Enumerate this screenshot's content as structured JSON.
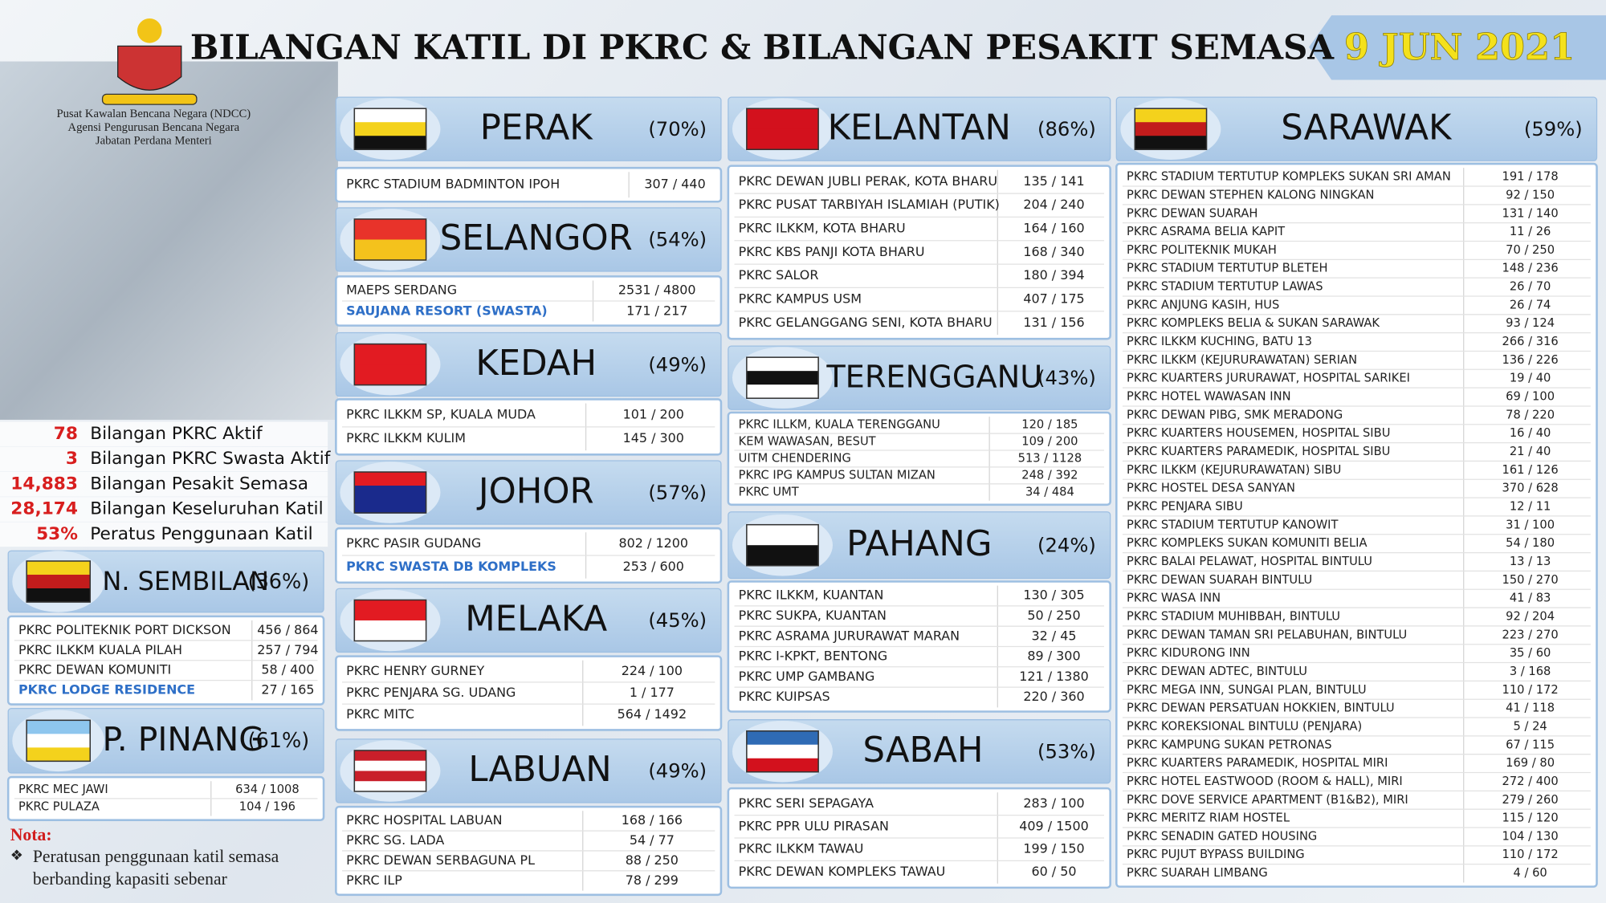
{
  "header": {
    "title": "BILANGAN KATIL DI PKRC & BILANGAN PESAKIT SEMASA",
    "date": "9 JUN 2021"
  },
  "agency": [
    "Pusat Kawalan Bencana Negara (NDCC)",
    "Agensi Pengurusan Bencana Negara",
    "Jabatan Perdana Menteri"
  ],
  "summary": [
    {
      "value": "78",
      "label": "Bilangan PKRC Aktif"
    },
    {
      "value": "3",
      "label": "Bilangan PKRC Swasta Aktif"
    },
    {
      "value": "14,883",
      "label": "Bilangan Pesakit Semasa"
    },
    {
      "value": "28,174",
      "label": "Bilangan Keseluruhan Katil"
    },
    {
      "value": "53%",
      "label": "Peratus Penggunaan Katil"
    }
  ],
  "states": [
    {
      "name": "PERAK",
      "pct": "(70%)",
      "rows": [
        {
          "name": "PKRC STADIUM BADMINTON IPOH",
          "value": "307 / 440"
        }
      ]
    },
    {
      "name": "SELANGOR",
      "pct": "(54%)",
      "rows": [
        {
          "name": "MAEPS SERDANG",
          "value": "2531 / 4800"
        },
        {
          "name": "SAUJANA RESORT (SWASTA)",
          "value": "171 / 217",
          "color": "#2e6fc7"
        }
      ]
    },
    {
      "name": "KEDAH",
      "pct": "(49%)",
      "rows": [
        {
          "name": "PKRC ILKKM SP, KUALA MUDA",
          "value": "101 / 200"
        },
        {
          "name": "PKRC ILKKM KULIM",
          "value": "145 / 300"
        }
      ]
    },
    {
      "name": "JOHOR",
      "pct": "(57%)",
      "rows": [
        {
          "name": "PKRC PASIR GUDANG",
          "value": "802 / 1200"
        },
        {
          "name": "PKRC SWASTA DB KOMPLEKS",
          "value": "253 / 600",
          "color": "#2e6fc7"
        }
      ]
    },
    {
      "name": "MELAKA",
      "pct": "(45%)",
      "rows": [
        {
          "name": "PKRC HENRY GURNEY",
          "value": "224 / 100"
        },
        {
          "name": "PKRC PENJARA SG. UDANG",
          "value": "1 / 177"
        },
        {
          "name": "PKRC MITC",
          "value": "564 / 1492"
        }
      ]
    },
    {
      "name": "LABUAN",
      "pct": "(49%)",
      "rows": [
        {
          "name": "PKRC HOSPITAL LABUAN",
          "value": "168 / 166"
        },
        {
          "name": "PKRC SG. LADA",
          "value": "54 / 77"
        },
        {
          "name": "PKRC DEWAN SERBAGUNA PL",
          "value": "88 / 250"
        },
        {
          "name": "PKRC ILP",
          "value": "78 / 299"
        }
      ]
    },
    {
      "name": "KELANTAN",
      "pct": "(86%)",
      "rows": [
        {
          "name": "PKRC DEWAN JUBLI PERAK, KOTA BHARU",
          "value": "135 / 141"
        },
        {
          "name": "PKRC PUSAT TARBIYAH ISLAMIAH (PUTIK)",
          "value": "204 / 240"
        },
        {
          "name": "PKRC ILKKM, KOTA BHARU",
          "value": "164 / 160"
        },
        {
          "name": "PKRC KBS PANJI KOTA BHARU",
          "value": "168 / 340"
        },
        {
          "name": "PKRC SALOR",
          "value": "180 / 394"
        },
        {
          "name": "PKRC KAMPUS USM",
          "value": "407 / 175"
        },
        {
          "name": "PKRC GELANGGANG SENI, KOTA BHARU",
          "value": "131 / 156"
        }
      ]
    },
    {
      "name": "TERENGGANU",
      "pct": "(43%)",
      "rows": [
        {
          "name": "PKRC ILLKM, KUALA TERENGGANU",
          "value": "120 / 185"
        },
        {
          "name": "KEM WAWASAN, BESUT",
          "value": "109 / 200"
        },
        {
          "name": "UITM CHENDERING",
          "value": "513 / 1128"
        },
        {
          "name": "PKRC IPG KAMPUS SULTAN MIZAN",
          "value": "248 / 392"
        },
        {
          "name": "PKRC UMT",
          "value": "34 / 484"
        }
      ]
    },
    {
      "name": "PAHANG",
      "pct": "(24%)",
      "rows": [
        {
          "name": "PKRC ILKKM, KUANTAN",
          "value": "130 / 305"
        },
        {
          "name": "PKRC SUKPA, KUANTAN",
          "value": "50 / 250"
        },
        {
          "name": "PKRC ASRAMA JURURAWAT MARAN",
          "value": "32 / 45"
        },
        {
          "name": "PKRC I-KPKT, BENTONG",
          "value": "89 / 300"
        },
        {
          "name": "PKRC UMP GAMBANG",
          "value": "121 / 1380"
        },
        {
          "name": "PKRC KUIPSAS",
          "value": "220 / 360"
        }
      ]
    },
    {
      "name": "SABAH",
      "pct": "(53%)",
      "rows": [
        {
          "name": "PKRC SERI SEPAGAYA",
          "value": "283 / 100"
        },
        {
          "name": "PKRC PPR ULU PIRASAN",
          "value": "409 / 1500"
        },
        {
          "name": "PKRC ILKKM TAWAU",
          "value": "199 / 150"
        },
        {
          "name": "PKRC DEWAN KOMPLEKS TAWAU",
          "value": "60 / 50"
        }
      ]
    },
    {
      "name": "SARAWAK",
      "pct": "(59%)",
      "rows": [
        {
          "name": "PKRC STADIUM TERTUTUP KOMPLEKS SUKAN SRI AMAN",
          "value": "191 / 178"
        },
        {
          "name": "PKRC DEWAN STEPHEN KALONG NINGKAN",
          "value": "92 / 150"
        },
        {
          "name": "PKRC DEWAN SUARAH",
          "value": "131 / 140"
        },
        {
          "name": "PKRC ASRAMA BELIA KAPIT",
          "value": "11 / 26"
        },
        {
          "name": "PKRC POLITEKNIK MUKAH",
          "value": "70 / 250"
        },
        {
          "name": "PKRC STADIUM TERTUTUP BLETEH",
          "value": "148 / 236"
        },
        {
          "name": "PKRC STADIUM TERTUTUP LAWAS",
          "value": "26 / 70"
        },
        {
          "name": "PKRC ANJUNG KASIH, HUS",
          "value": "26 / 74"
        },
        {
          "name": "PKRC KOMPLEKS BELIA & SUKAN SARAWAK",
          "value": "93 / 124"
        },
        {
          "name": "PKRC ILKKM KUCHING, BATU 13",
          "value": "266 / 316"
        },
        {
          "name": "PKRC ILKKM (KEJURURAWATAN) SERIAN",
          "value": "136 / 226"
        },
        {
          "name": "PKRC KUARTERS JURURAWAT, HOSPITAL SARIKEI",
          "value": "19 / 40"
        },
        {
          "name": "PKRC HOTEL WAWASAN INN",
          "value": "69 / 100"
        },
        {
          "name": "PKRC DEWAN PIBG, SMK MERADONG",
          "value": "78 / 220"
        },
        {
          "name": "PKRC KUARTERS HOUSEMEN, HOSPITAL SIBU",
          "value": "16 / 40"
        },
        {
          "name": "PKRC KUARTERS PARAMEDIK, HOSPITAL SIBU",
          "value": "21 / 40"
        },
        {
          "name": "PKRC ILKKM (KEJURURAWATAN) SIBU",
          "value": "161 / 126"
        },
        {
          "name": "PKRC HOSTEL DESA SANYAN",
          "value": "370 / 628"
        },
        {
          "name": "PKRC PENJARA SIBU",
          "value": "12 / 11"
        },
        {
          "name": "PKRC STADIUM TERTUTUP KANOWIT",
          "value": "31 / 100"
        },
        {
          "name": "PKRC KOMPLEKS SUKAN KOMUNITI BELIA",
          "value": "54 / 180"
        },
        {
          "name": "PKRC BALAI PELAWAT, HOSPITAL BINTULU",
          "value": "13 / 13"
        },
        {
          "name": "PKRC DEWAN SUARAH BINTULU",
          "value": "150 / 270"
        },
        {
          "name": "PKRC WASA INN",
          "value": "41 / 83"
        },
        {
          "name": "PKRC STADIUM MUHIBBAH, BINTULU",
          "value": "92 / 204"
        },
        {
          "name": "PKRC DEWAN TAMAN SRI PELABUHAN, BINTULU",
          "value": "223 / 270"
        },
        {
          "name": "PKRC KIDURONG INN",
          "value": "35 / 60"
        },
        {
          "name": "PKRC DEWAN ADTEC, BINTULU",
          "value": "3 / 168"
        },
        {
          "name": "PKRC MEGA INN, SUNGAI PLAN, BINTULU",
          "value": "110 / 172"
        },
        {
          "name": "PKRC DEWAN PERSATUAN HOKKIEN, BINTULU",
          "value": "41 / 118"
        },
        {
          "name": "PKRC KOREKSIONAL BINTULU (PENJARA)",
          "value": "5 / 24"
        },
        {
          "name": "PKRC KAMPUNG SUKAN PETRONAS",
          "value": "67 / 115"
        },
        {
          "name": "PKRC KUARTERS PARAMEDIK, HOSPITAL MIRI",
          "value": "169 / 80"
        },
        {
          "name": "PKRC HOTEL EASTWOOD (ROOM & HALL), MIRI",
          "value": "272 / 400"
        },
        {
          "name": "PKRC DOVE SERVICE APARTMENT (B1&B2), MIRI",
          "value": "279 / 260"
        },
        {
          "name": "PKRC MERITZ RIAM HOSTEL",
          "value": "115 / 120"
        },
        {
          "name": "PKRC SENADIN GATED HOUSING",
          "value": "104 / 130"
        },
        {
          "name": "PKRC PUJUT BYPASS BUILDING",
          "value": "110 / 172"
        },
        {
          "name": "PKRC SUARAH LIMBANG",
          "value": "4 / 60"
        }
      ]
    },
    {
      "name": "N. SEMBILAN",
      "pct": "(36%)",
      "rows": [
        {
          "name": "PKRC POLITEKNIK PORT DICKSON",
          "value": "456 / 864"
        },
        {
          "name": "PKRC ILKKM KUALA PILAH",
          "value": "257 / 794"
        },
        {
          "name": "PKRC DEWAN KOMUNITI",
          "value": "58 / 400"
        },
        {
          "name": "PKRC LODGE RESIDENCE",
          "value": "27 / 165",
          "color": "#2e6fc7"
        }
      ]
    },
    {
      "name": "P. PINANG",
      "pct": "(61%)",
      "rows": [
        {
          "name": "PKRC MEC JAWI",
          "value": "634 / 1008"
        },
        {
          "name": "PKRC PULAZA",
          "value": "104 / 196"
        }
      ]
    }
  ],
  "note": {
    "title": "Nota:",
    "text": "Peratusan penggunaan katil semasa berbanding kapasiti sebenar"
  }
}
